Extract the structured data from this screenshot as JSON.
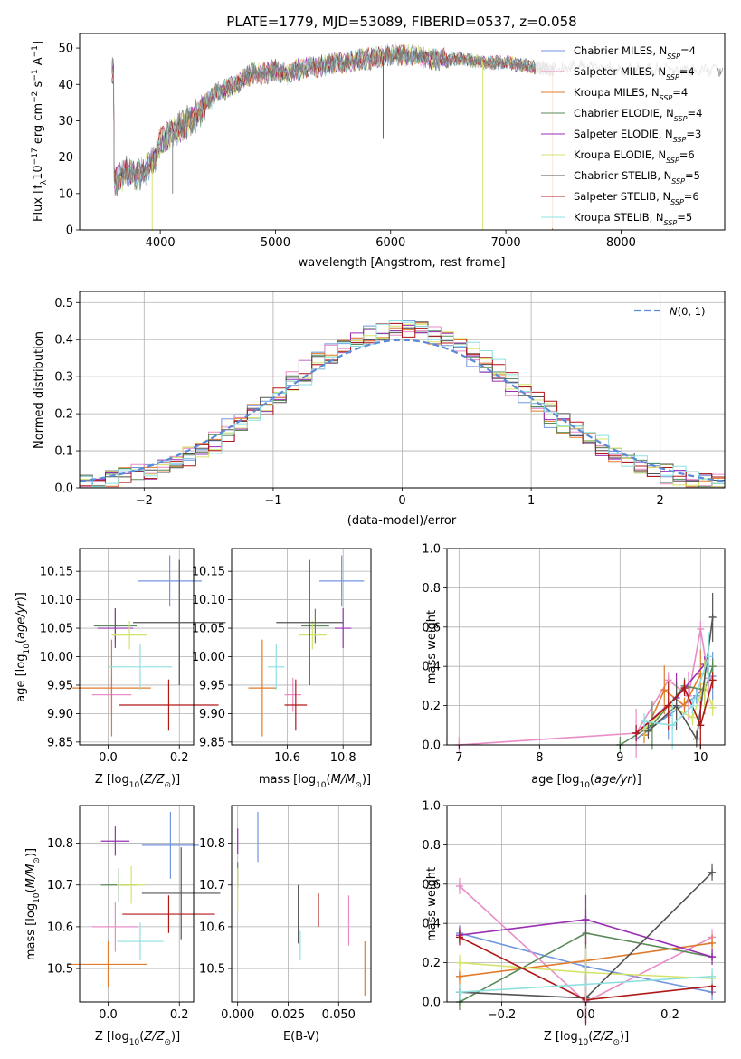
{
  "colors": {
    "Chabrier MILES": "#7096e0",
    "Salpeter MILES": "#e98cc7",
    "Kroupa MILES": "#e07b2b",
    "Chabrier ELODIE": "#5a8a5a",
    "Salpeter ELODIE": "#9a2fb4",
    "Kroupa ELODIE": "#d5e36a",
    "Chabrier STELIB": "#545454",
    "Salpeter STELIB": "#b01818",
    "Kroupa STELIB": "#8ee0e0",
    "spectrum_gray": "#7f7f7f",
    "normal_curve": "#5b8ad8"
  },
  "chart_data": [
    {
      "id": "spectrum",
      "type": "line",
      "title": "PLATE=1779, MJD=53089, FIBERID=0537, z=0.058",
      "xlabel": "wavelength [Angstrom, rest frame]",
      "ylabel": "Flux [f_λ10^-17 erg cm^-2 s^-1 A^-1]",
      "xlim": [
        3300,
        8900
      ],
      "ylim": [
        0,
        54
      ],
      "xticks": [
        4000,
        5000,
        6000,
        7000,
        8000
      ],
      "yticks": [
        0,
        10,
        20,
        30,
        40,
        50
      ],
      "spectrum_knots": {
        "x": [
          3600,
          3700,
          3800,
          3900,
          3950,
          4000,
          4100,
          4200,
          4300,
          4400,
          4500,
          4600,
          4700,
          4800,
          4900,
          5000,
          5100,
          5200,
          5300,
          5400,
          5500,
          5600,
          5800,
          6000,
          6200,
          6400,
          6600,
          6800,
          7000,
          7200,
          7400,
          7600,
          7800,
          8000,
          8200,
          8400,
          8600,
          8800
        ],
        "y": [
          13,
          16,
          15,
          17,
          20,
          24,
          27,
          29,
          31,
          35,
          38,
          39,
          41,
          43,
          43,
          44,
          43,
          44,
          45,
          45,
          46,
          46,
          47,
          48,
          48,
          47,
          47,
          46,
          46,
          45,
          44,
          45,
          45,
          44,
          44,
          44,
          44,
          44
        ]
      },
      "legend": {
        "placement": "top-right",
        "entries": [
          {
            "name": "Chabrier MILES",
            "suffix": "=4"
          },
          {
            "name": "Salpeter MILES",
            "suffix": "=4"
          },
          {
            "name": "Kroupa MILES",
            "suffix": "=4"
          },
          {
            "name": "Chabrier ELODIE",
            "suffix": "=4"
          },
          {
            "name": "Salpeter ELODIE",
            "suffix": "=3"
          },
          {
            "name": "Kroupa ELODIE",
            "suffix": "=6"
          },
          {
            "name": "Chabrier STELIB",
            "suffix": "=5"
          },
          {
            "name": "Salpeter STELIB",
            "suffix": "=6"
          },
          {
            "name": "Kroupa STELIB",
            "suffix": "=5"
          }
        ],
        "nssp_label": "N",
        "nssp_sub": "SSP"
      }
    },
    {
      "id": "residuals",
      "type": "line",
      "xlabel": "(data-model)/error",
      "ylabel": "Normed distribution",
      "xlim": [
        -2.5,
        2.5
      ],
      "ylim": [
        0,
        0.53
      ],
      "xticks": [
        -2,
        -1,
        0,
        1,
        2
      ],
      "yticks": [
        0.0,
        0.1,
        0.2,
        0.3,
        0.4,
        0.5
      ],
      "grid": true,
      "bin_width": 0.1,
      "legend": {
        "placement": "top-right",
        "label": "N(0,1)"
      }
    },
    {
      "id": "age_vs_Z",
      "type": "scatter",
      "xlabel": "Z [log10(Z/Z⊙)]",
      "ylabel": "age  [log10(age/yr)]",
      "xlim": [
        -0.08,
        0.24
      ],
      "ylim": [
        9.845,
        10.19
      ],
      "xticks": [
        0.0,
        0.2
      ],
      "yticks": [
        9.85,
        9.9,
        9.95,
        10.0,
        10.05,
        10.1,
        10.15
      ],
      "grid": true,
      "points": [
        {
          "series": "Chabrier MILES",
          "x": 0.173,
          "y": 10.133,
          "xerr": 0.09,
          "yerr": 0.045
        },
        {
          "series": "Salpeter MILES",
          "x": 0.01,
          "y": 9.933,
          "xerr": 0.055,
          "yerr": 0.03
        },
        {
          "series": "Kroupa MILES",
          "x": 0.01,
          "y": 9.945,
          "xerr": 0.11,
          "yerr": 0.085
        },
        {
          "series": "Chabrier ELODIE",
          "x": 0.02,
          "y": 10.054,
          "xerr": 0.06,
          "yerr": 0.03
        },
        {
          "series": "Salpeter ELODIE",
          "x": 0.02,
          "y": 10.05,
          "xerr": 0.05,
          "yerr": 0.035
        },
        {
          "series": "Kroupa ELODIE",
          "x": 0.06,
          "y": 10.038,
          "xerr": 0.05,
          "yerr": 0.025
        },
        {
          "series": "Chabrier STELIB",
          "x": 0.2,
          "y": 10.06,
          "xerr": 0.13,
          "yerr": 0.11
        },
        {
          "series": "Salpeter STELIB",
          "x": 0.17,
          "y": 9.915,
          "xerr": 0.14,
          "yerr": 0.045
        },
        {
          "series": "Kroupa STELIB",
          "x": 0.09,
          "y": 9.982,
          "xerr": 0.09,
          "yerr": 0.04
        }
      ]
    },
    {
      "id": "age_vs_mass",
      "type": "scatter",
      "xlabel": "mass [log10(M/M⊙)]",
      "ylabel": "",
      "xlim": [
        10.4,
        10.9
      ],
      "ylim": [
        9.845,
        10.19
      ],
      "xticks": [
        10.6,
        10.8
      ],
      "yticks": [
        9.85,
        9.9,
        9.95,
        10.0,
        10.05,
        10.1,
        10.15
      ],
      "grid": true,
      "points": [
        {
          "series": "Chabrier MILES",
          "x": 10.795,
          "y": 10.133,
          "xerr": 0.08,
          "yerr": 0.045
        },
        {
          "series": "Salpeter MILES",
          "x": 10.62,
          "y": 9.933,
          "xerr": 0.03,
          "yerr": 0.03
        },
        {
          "series": "Kroupa MILES",
          "x": 10.51,
          "y": 9.945,
          "xerr": 0.05,
          "yerr": 0.085
        },
        {
          "series": "Chabrier ELODIE",
          "x": 10.7,
          "y": 10.054,
          "xerr": 0.05,
          "yerr": 0.03
        },
        {
          "series": "Salpeter ELODIE",
          "x": 10.8,
          "y": 10.05,
          "xerr": 0.03,
          "yerr": 0.035
        },
        {
          "series": "Kroupa ELODIE",
          "x": 10.69,
          "y": 10.038,
          "xerr": 0.05,
          "yerr": 0.025
        },
        {
          "series": "Chabrier STELIB",
          "x": 10.68,
          "y": 10.06,
          "xerr": 0.12,
          "yerr": 0.11
        },
        {
          "series": "Salpeter STELIB",
          "x": 10.63,
          "y": 9.915,
          "xerr": 0.04,
          "yerr": 0.045
        },
        {
          "series": "Kroupa STELIB",
          "x": 10.56,
          "y": 9.982,
          "xerr": 0.03,
          "yerr": 0.04
        }
      ]
    },
    {
      "id": "weight_vs_age",
      "type": "line",
      "xlabel": "age  [log10(age/yr)]",
      "ylabel": "mass weight",
      "xlim": [
        6.85,
        10.3
      ],
      "ylim": [
        0,
        1
      ],
      "xticks": [
        7,
        8,
        9,
        10
      ],
      "yticks": [
        0.0,
        0.2,
        0.4,
        0.6,
        0.8,
        1.0
      ],
      "grid": true,
      "series": [
        {
          "name": "Chabrier MILES",
          "x": [
            9.2,
            9.6,
            9.95,
            10.15
          ],
          "y": [
            0.03,
            0.15,
            0.25,
            0.35
          ]
        },
        {
          "name": "Salpeter MILES",
          "x": [
            7.0,
            9.2,
            9.6,
            9.85,
            10.0,
            10.1
          ],
          "y": [
            0.0,
            0.06,
            0.33,
            0.25,
            0.59,
            0.34
          ]
        },
        {
          "name": "Kroupa MILES",
          "x": [
            9.3,
            9.55,
            9.8,
            10.0
          ],
          "y": [
            0.05,
            0.28,
            0.2,
            0.36
          ]
        },
        {
          "name": "Chabrier ELODIE",
          "x": [
            9.0,
            9.4,
            9.8,
            10.05,
            10.15
          ],
          "y": [
            0.0,
            0.1,
            0.3,
            0.28,
            0.4
          ]
        },
        {
          "name": "Salpeter ELODIE",
          "x": [
            9.2,
            9.7,
            10.05
          ],
          "y": [
            0.06,
            0.24,
            0.41
          ]
        },
        {
          "name": "Kroupa ELODIE",
          "x": [
            9.3,
            9.6,
            9.9,
            10.05,
            10.15
          ],
          "y": [
            0.08,
            0.2,
            0.14,
            0.31,
            0.19
          ]
        },
        {
          "name": "Chabrier STELIB",
          "x": [
            9.35,
            9.7,
            9.95,
            10.15
          ],
          "y": [
            0.07,
            0.2,
            0.03,
            0.65
          ]
        },
        {
          "name": "Salpeter STELIB",
          "x": [
            9.2,
            9.6,
            9.8,
            10.0,
            10.15
          ],
          "y": [
            0.06,
            0.2,
            0.29,
            0.1,
            0.33
          ]
        },
        {
          "name": "Kroupa STELIB",
          "x": [
            9.3,
            9.65,
            9.9,
            10.1
          ],
          "y": [
            0.12,
            0.1,
            0.2,
            0.45
          ]
        }
      ]
    },
    {
      "id": "mass_vs_Z",
      "type": "scatter",
      "xlabel": "Z [log10(Z/Z⊙)]",
      "ylabel": "mass [log10(M/M⊙)]",
      "xlim": [
        -0.08,
        0.24
      ],
      "ylim": [
        10.42,
        10.89
      ],
      "xticks": [
        0.0,
        0.2
      ],
      "yticks": [
        10.5,
        10.6,
        10.7,
        10.8
      ],
      "grid": true,
      "points": [
        {
          "series": "Chabrier MILES",
          "x": 0.175,
          "y": 10.795,
          "xerr": 0.08,
          "yerr": 0.08
        },
        {
          "series": "Salpeter MILES",
          "x": 0.02,
          "y": 10.6,
          "xerr": 0.065,
          "yerr": 0.06
        },
        {
          "series": "Kroupa MILES",
          "x": 0.0,
          "y": 10.51,
          "xerr": 0.11,
          "yerr": 0.055
        },
        {
          "series": "Chabrier ELODIE",
          "x": 0.03,
          "y": 10.7,
          "xerr": 0.05,
          "yerr": 0.04
        },
        {
          "series": "Salpeter ELODIE",
          "x": 0.02,
          "y": 10.805,
          "xerr": 0.04,
          "yerr": 0.035
        },
        {
          "series": "Kroupa ELODIE",
          "x": 0.065,
          "y": 10.7,
          "xerr": 0.04,
          "yerr": 0.045
        },
        {
          "series": "Chabrier STELIB",
          "x": 0.205,
          "y": 10.68,
          "xerr": 0.11,
          "yerr": 0.11
        },
        {
          "series": "Salpeter STELIB",
          "x": 0.17,
          "y": 10.63,
          "xerr": 0.13,
          "yerr": 0.045
        },
        {
          "series": "Kroupa STELIB",
          "x": 0.09,
          "y": 10.565,
          "xerr": 0.065,
          "yerr": 0.045
        }
      ]
    },
    {
      "id": "mass_vs_EBV",
      "type": "scatter",
      "xlabel": "E(B-V)",
      "ylabel": "",
      "xlim": [
        -0.003,
        0.066
      ],
      "ylim": [
        10.42,
        10.89
      ],
      "xticks": [
        0.0,
        0.025,
        0.05
      ],
      "yticks": [
        10.5,
        10.6,
        10.7,
        10.8
      ],
      "grid": true,
      "points": [
        {
          "series": "Chabrier MILES",
          "x": 0.01,
          "y": 10.815,
          "xerr": 0.0,
          "yerr": 0.06
        },
        {
          "series": "Salpeter MILES",
          "x": 0.055,
          "y": 10.615,
          "xerr": 0.0,
          "yerr": 0.06
        },
        {
          "series": "Kroupa MILES",
          "x": 0.063,
          "y": 10.5,
          "xerr": 0.0,
          "yerr": 0.065
        },
        {
          "series": "Chabrier ELODIE",
          "x": 0.0,
          "y": 10.725,
          "xerr": 0.0,
          "yerr": 0.03
        },
        {
          "series": "Salpeter ELODIE",
          "x": 0.0,
          "y": 10.805,
          "xerr": 0.0,
          "yerr": 0.03
        },
        {
          "series": "Kroupa ELODIE",
          "x": 0.0,
          "y": 10.69,
          "xerr": 0.0,
          "yerr": 0.05
        },
        {
          "series": "Chabrier STELIB",
          "x": 0.03,
          "y": 10.63,
          "xerr": 0.0,
          "yerr": 0.07
        },
        {
          "series": "Salpeter STELIB",
          "x": 0.04,
          "y": 10.64,
          "xerr": 0.0,
          "yerr": 0.04
        },
        {
          "series": "Kroupa STELIB",
          "x": 0.031,
          "y": 10.555,
          "xerr": 0.0,
          "yerr": 0.035
        }
      ]
    },
    {
      "id": "weight_vs_Z",
      "type": "line",
      "xlabel": "Z [log10(Z/Z⊙)]",
      "ylabel": "mass weight",
      "xlim": [
        -0.33,
        0.33
      ],
      "ylim": [
        0,
        1
      ],
      "xticks": [
        -0.2,
        0.0,
        0.2
      ],
      "yticks": [
        0.0,
        0.2,
        0.4,
        0.6,
        0.8,
        1.0
      ],
      "grid": true,
      "series": [
        {
          "name": "Chabrier MILES",
          "x": [
            -0.3,
            0.0,
            0.3
          ],
          "y": [
            0.35,
            0.18,
            0.05
          ]
        },
        {
          "name": "Salpeter MILES",
          "x": [
            -0.3,
            0.0,
            0.3
          ],
          "y": [
            0.59,
            0.0,
            0.33
          ]
        },
        {
          "name": "Kroupa MILES",
          "x": [
            -0.3,
            0.0,
            0.3
          ],
          "y": [
            0.13,
            0.21,
            0.3
          ]
        },
        {
          "name": "Chabrier ELODIE",
          "x": [
            -0.3,
            0.0,
            0.3
          ],
          "y": [
            0.0,
            0.35,
            0.23
          ]
        },
        {
          "name": "Salpeter ELODIE",
          "x": [
            -0.3,
            0.0,
            0.3
          ],
          "y": [
            0.34,
            0.42,
            0.23
          ]
        },
        {
          "name": "Kroupa ELODIE",
          "x": [
            -0.3,
            0.0,
            0.3
          ],
          "y": [
            0.2,
            0.15,
            0.12
          ]
        },
        {
          "name": "Chabrier STELIB",
          "x": [
            -0.3,
            0.0,
            0.3
          ],
          "y": [
            0.05,
            0.02,
            0.66
          ]
        },
        {
          "name": "Salpeter STELIB",
          "x": [
            -0.3,
            0.0,
            0.3
          ],
          "y": [
            0.33,
            0.01,
            0.08
          ]
        },
        {
          "name": "Kroupa STELIB",
          "x": [
            -0.3,
            0.0,
            0.3
          ],
          "y": [
            0.05,
            0.09,
            0.13
          ]
        }
      ]
    }
  ]
}
